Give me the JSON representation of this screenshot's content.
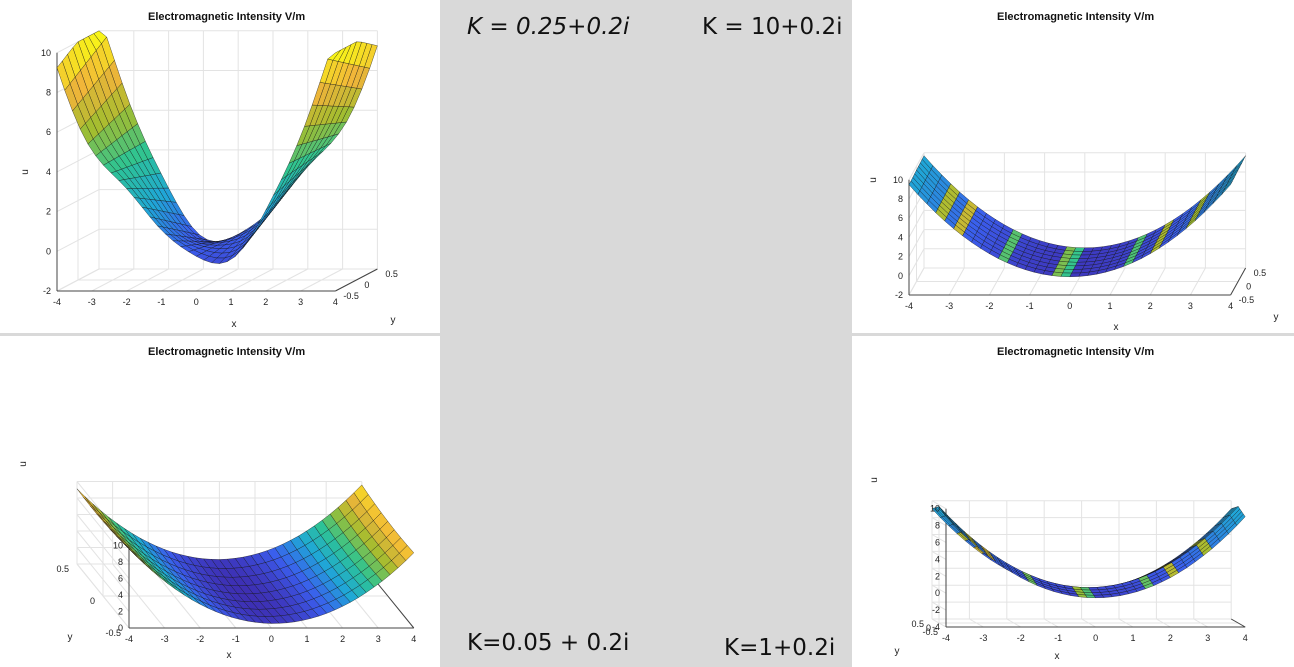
{
  "annotations": {
    "k_025": "K = 0.25+0.2i",
    "k_10": "K = 10+0.2i",
    "k_005": "K=0.05 + 0.2i",
    "k_1": "K=1+0.2i"
  },
  "colors": {
    "background": "#d9d9d9",
    "panel": "#ffffff",
    "colormap": [
      "#3e26a8",
      "#3b5ded",
      "#1fa8d6",
      "#2ec492",
      "#a3bd2f",
      "#f1b43a",
      "#f9fb15"
    ]
  },
  "chart_data": [
    {
      "type": "surface",
      "title": "Electromagnetic Intensity V/m",
      "xlabel": "x",
      "ylabel": "y",
      "zlabel": "u",
      "xlim": [
        -4,
        4
      ],
      "ylim": [
        -0.5,
        0.5
      ],
      "zlim": [
        -2,
        10
      ],
      "x_ticks": [
        "-4",
        "-3",
        "-2",
        "-1",
        "0",
        "1",
        "2",
        "3",
        "4"
      ],
      "y_ticks": [
        "-0.5",
        "0",
        "0.5"
      ],
      "z_ticks": [
        "-2",
        "0",
        "2",
        "4",
        "6",
        "8",
        "10"
      ],
      "grid": true
    },
    {
      "type": "surface",
      "title": "Electromagnetic Intensity V/m",
      "xlabel": "x",
      "ylabel": "y",
      "zlabel": "u",
      "xlim": [
        -4,
        4
      ],
      "ylim": [
        -0.5,
        0.5
      ],
      "zlim": [
        -2,
        10
      ],
      "x_ticks": [
        "-4",
        "-3",
        "-2",
        "-1",
        "0",
        "1",
        "2",
        "3",
        "4"
      ],
      "y_ticks": [
        "-0.5",
        "0",
        "0.5"
      ],
      "z_ticks": [
        "-2",
        "0",
        "2",
        "4",
        "6",
        "8",
        "10"
      ],
      "grid": true
    },
    {
      "type": "surface",
      "title": "Electromagnetic Intensity V/m",
      "xlabel": "x",
      "ylabel": "y",
      "zlabel": "u",
      "xlim": [
        -4,
        4
      ],
      "ylim": [
        -0.5,
        0.5
      ],
      "zlim": [
        0,
        10
      ],
      "x_ticks": [
        "-4",
        "-3",
        "-2",
        "-1",
        "0",
        "1",
        "2",
        "3",
        "4"
      ],
      "y_ticks": [
        "-0.5",
        "0",
        "0.5"
      ],
      "z_ticks": [
        "0",
        "2",
        "4",
        "6",
        "8",
        "10"
      ],
      "grid": true
    },
    {
      "type": "surface",
      "title": "Electromagnetic Intensity V/m",
      "xlabel": "x",
      "ylabel": "y",
      "zlabel": "u",
      "xlim": [
        -4,
        4
      ],
      "ylim": [
        -0.5,
        0.5
      ],
      "zlim": [
        -4,
        10
      ],
      "x_ticks": [
        "-4",
        "-3",
        "-2",
        "-1",
        "0",
        "1",
        "2",
        "3",
        "4"
      ],
      "y_ticks": [
        "-0.5",
        "0",
        "0.5"
      ],
      "z_ticks": [
        "-4",
        "-2",
        "0",
        "2",
        "4",
        "6",
        "8",
        "10"
      ],
      "grid": true
    }
  ]
}
